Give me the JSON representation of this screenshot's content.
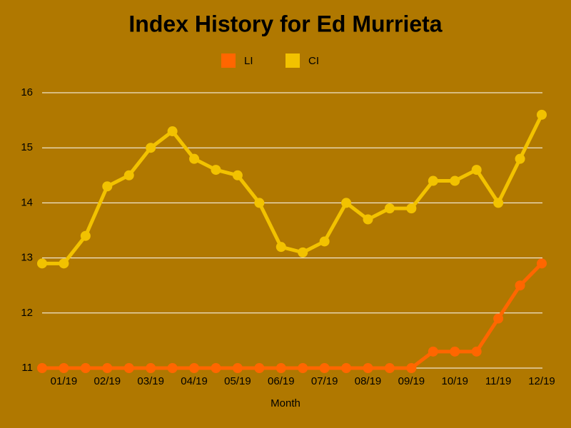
{
  "chart_data": {
    "type": "line",
    "title": "Index History for Ed Murrieta",
    "x_label": "Month",
    "categories": [
      null,
      "01/19",
      null,
      "02/19",
      null,
      "03/19",
      null,
      "04/19",
      null,
      "05/19",
      null,
      "06/19",
      null,
      "07/19",
      null,
      "08/19",
      null,
      "09/19",
      null,
      "10/19",
      null,
      "11/19",
      null,
      "12/19"
    ],
    "series": [
      {
        "name": "LI",
        "color": "#ff6600",
        "values": [
          11,
          11,
          11,
          11,
          11,
          11,
          11,
          11,
          11,
          11,
          11,
          11,
          11,
          11,
          11,
          11,
          11,
          11,
          11.3,
          11.3,
          11.3,
          11.9,
          12.5,
          12.9
        ]
      },
      {
        "name": "CI",
        "color": "#f2c200",
        "values": [
          12.9,
          12.9,
          13.4,
          14.3,
          14.5,
          15.0,
          15.3,
          14.8,
          14.6,
          14.5,
          14.0,
          13.2,
          13.1,
          13.3,
          14.0,
          13.7,
          13.9,
          13.9,
          14.4,
          14.4,
          14.6,
          14.0,
          14.8,
          15.6
        ]
      }
    ],
    "ylim": [
      11,
      16
    ],
    "yticks": [
      11,
      12,
      13,
      14,
      15,
      16
    ],
    "grid": true
  }
}
